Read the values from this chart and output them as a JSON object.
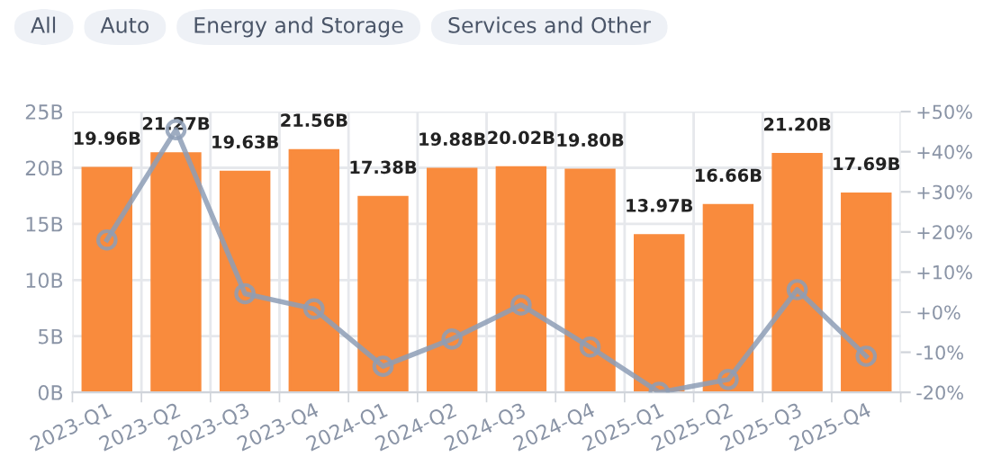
{
  "chart_data": {
    "type": "bar",
    "categories": [
      "2023-Q1",
      "2023-Q2",
      "2023-Q3",
      "2023-Q4",
      "2024-Q1",
      "2024-Q2",
      "2024-Q3",
      "2024-Q4",
      "2025-Q1",
      "2025-Q2",
      "2025-Q3",
      "2025-Q4"
    ],
    "series": [
      {
        "color": "#f98b3d",
        "values": [
          19.96,
          21.27,
          19.63,
          21.56,
          17.38,
          19.88,
          20.02,
          19.8,
          13.97,
          16.66,
          21.2,
          17.69
        ],
        "value_labels": [
          "19.96B",
          "21.27B",
          "19.63B",
          "21.56B",
          "17.38B",
          "19.88B",
          "20.02B",
          "19.80B",
          "13.97B",
          "16.66B",
          "21.20B",
          "17.69B"
        ]
      },
      {
        "type": "line",
        "axis": "y2",
        "color": "#8d9db6",
        "marker": "circle",
        "values": [
          18,
          45.5,
          4.6,
          0.8,
          -13.5,
          -6.7,
          1.8,
          -8.7,
          -20,
          -16.8,
          5.6,
          -11
        ]
      }
    ],
    "ylim": [
      0,
      25
    ],
    "yticks": [
      {
        "value": 0,
        "label": "0B"
      },
      {
        "value": 5,
        "label": "5B"
      },
      {
        "value": 10,
        "label": "10B"
      },
      {
        "value": 15,
        "label": "15B"
      },
      {
        "value": 20,
        "label": "20B"
      },
      {
        "value": 25,
        "label": "25B"
      }
    ],
    "y2lim": [
      -20,
      50
    ],
    "y2ticks": [
      {
        "value": -20,
        "label": "-20%"
      },
      {
        "value": -10,
        "label": "-10%"
      },
      {
        "value": 0,
        "label": "+0%"
      },
      {
        "value": 10,
        "label": "+10%"
      },
      {
        "value": 20,
        "label": "+20%"
      },
      {
        "value": 30,
        "label": "+30%"
      },
      {
        "value": 40,
        "label": "+40%"
      },
      {
        "value": 50,
        "label": "+50%"
      }
    ],
    "grid": true,
    "legend": false,
    "annotations": [
      "All",
      "Auto",
      "Energy and Storage",
      "Services and Other"
    ]
  }
}
